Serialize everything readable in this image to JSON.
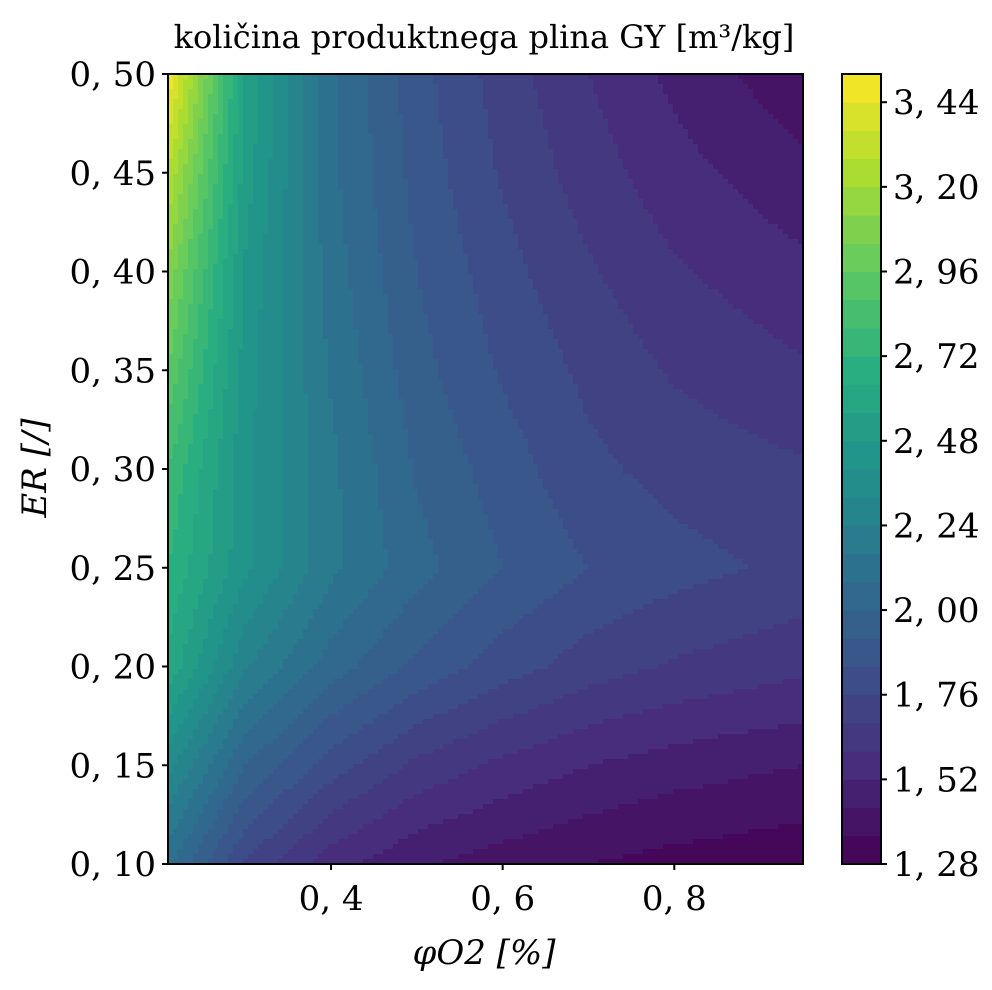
{
  "chart_data": {
    "type": "heatmap",
    "subtype": "filled-contour",
    "title": "količina produktnega plina GY [m³/kg]",
    "xlabel": "φO2 [%]",
    "ylabel": "ER [/]",
    "xlim": [
      0.21,
      0.95
    ],
    "ylim": [
      0.1,
      0.5
    ],
    "x_ticks": [
      0.4,
      0.6,
      0.8
    ],
    "x_tick_labels": [
      "0, 4",
      "0, 6",
      "0, 8"
    ],
    "y_ticks": [
      0.1,
      0.15,
      0.2,
      0.25,
      0.3,
      0.35,
      0.4,
      0.45,
      0.5
    ],
    "y_tick_labels": [
      "0, 10",
      "0, 15",
      "0, 20",
      "0, 25",
      "0, 30",
      "0, 35",
      "0, 40",
      "0, 45",
      "0, 50"
    ],
    "colormap": "viridis",
    "color_range": [
      1.28,
      3.52
    ],
    "levels": 28,
    "colorbar_ticks": [
      1.28,
      1.52,
      1.76,
      2.0,
      2.24,
      2.48,
      2.72,
      2.96,
      3.2,
      3.44
    ],
    "colorbar_tick_labels": [
      "1, 28",
      "1, 52",
      "1, 76",
      "2, 00",
      "2, 24",
      "2, 48",
      "2, 72",
      "2, 96",
      "3, 20",
      "3, 44"
    ],
    "grid": false,
    "x": [
      0.21,
      0.3,
      0.4,
      0.5,
      0.6,
      0.7,
      0.8,
      0.95
    ],
    "y": [
      0.1,
      0.15,
      0.2,
      0.25,
      0.3,
      0.35,
      0.4,
      0.45,
      0.5
    ],
    "z": [
      [
        2.1,
        1.75,
        1.55,
        1.45,
        1.4,
        1.36,
        1.33,
        1.3
      ],
      [
        2.35,
        2.0,
        1.8,
        1.66,
        1.58,
        1.52,
        1.48,
        1.44
      ],
      [
        2.62,
        2.25,
        2.04,
        1.9,
        1.8,
        1.72,
        1.67,
        1.62
      ],
      [
        2.72,
        2.42,
        2.18,
        2.03,
        1.92,
        1.84,
        1.79,
        1.74
      ],
      [
        2.8,
        2.42,
        2.18,
        1.99,
        1.88,
        1.78,
        1.73,
        1.69
      ],
      [
        2.95,
        2.44,
        2.15,
        1.95,
        1.83,
        1.74,
        1.67,
        1.61
      ],
      [
        3.1,
        2.47,
        2.12,
        1.92,
        1.79,
        1.69,
        1.61,
        1.54
      ],
      [
        3.28,
        2.52,
        2.1,
        1.89,
        1.75,
        1.64,
        1.55,
        1.46
      ],
      [
        3.5,
        2.56,
        2.1,
        1.87,
        1.72,
        1.6,
        1.5,
        1.38
      ]
    ]
  }
}
